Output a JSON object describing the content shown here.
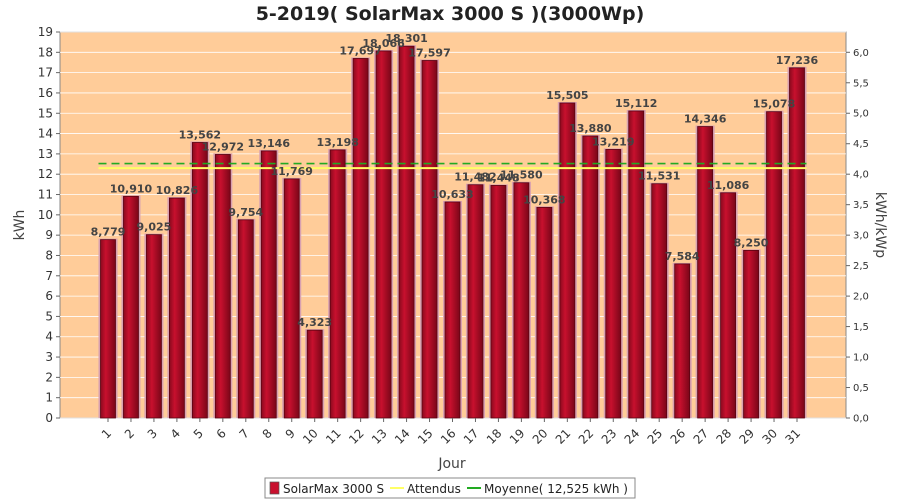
{
  "chart_data": {
    "type": "bar",
    "title": "5-2019( SolarMax 3000 S )(3000Wp)",
    "xlabel": "Jour",
    "ylabel": "kWh",
    "y2label": "kWh/kWp",
    "ylim": [
      0,
      19
    ],
    "y2lim": [
      0,
      6.333
    ],
    "categories": [
      "1",
      "2",
      "3",
      "4",
      "5",
      "6",
      "7",
      "8",
      "9",
      "10",
      "11",
      "12",
      "13",
      "14",
      "15",
      "16",
      "17",
      "18",
      "19",
      "20",
      "21",
      "22",
      "23",
      "24",
      "25",
      "26",
      "27",
      "28",
      "29",
      "30",
      "31"
    ],
    "series": [
      {
        "name": "SolarMax 3000 S",
        "color": "#c8102e",
        "values": [
          8.779,
          10.91,
          9.025,
          10.826,
          13.562,
          12.972,
          9.754,
          13.146,
          11.769,
          4.323,
          13.198,
          17.697,
          18.066,
          18.301,
          17.597,
          10.633,
          11.482,
          11.448,
          11.58,
          10.368,
          15.505,
          13.88,
          13.219,
          15.112,
          11.531,
          7.584,
          14.346,
          11.086,
          8.25,
          15.078,
          17.236
        ],
        "labels": [
          "8,779",
          "10,910",
          "9,025",
          "10,826",
          "13,562",
          "12,972",
          "9,754",
          "13,146",
          "11,769",
          "4,323",
          "13,198",
          "17,697",
          "18,066",
          "18,301",
          "17,597",
          "10,633",
          "11,482",
          "11,448",
          "11,580",
          "10,368",
          "15,505",
          "13,880",
          "13,219",
          "15,112",
          "11,531",
          "7,584",
          "14,346",
          "11,086",
          "8,250",
          "15,078",
          "17,236"
        ]
      }
    ],
    "expected": {
      "name": "Attendus",
      "value": 12.3,
      "color": "#ffff66"
    },
    "average": {
      "name": "Moyenne( 12,525 kWh )",
      "value": 12.525,
      "color": "#22aa22"
    },
    "yticks": [
      "0",
      "1",
      "2",
      "3",
      "4",
      "5",
      "6",
      "7",
      "8",
      "9",
      "10",
      "11",
      "12",
      "13",
      "14",
      "15",
      "16",
      "17",
      "18",
      "19"
    ],
    "y2ticks": [
      "0,0",
      "0,5",
      "1,0",
      "1,5",
      "2,0",
      "2,5",
      "3,0",
      "3,5",
      "4,0",
      "4,5",
      "5,0",
      "5,5",
      "6,0"
    ],
    "plot_background": "#ffcc99",
    "grid": true,
    "legend_position": "bottom"
  }
}
